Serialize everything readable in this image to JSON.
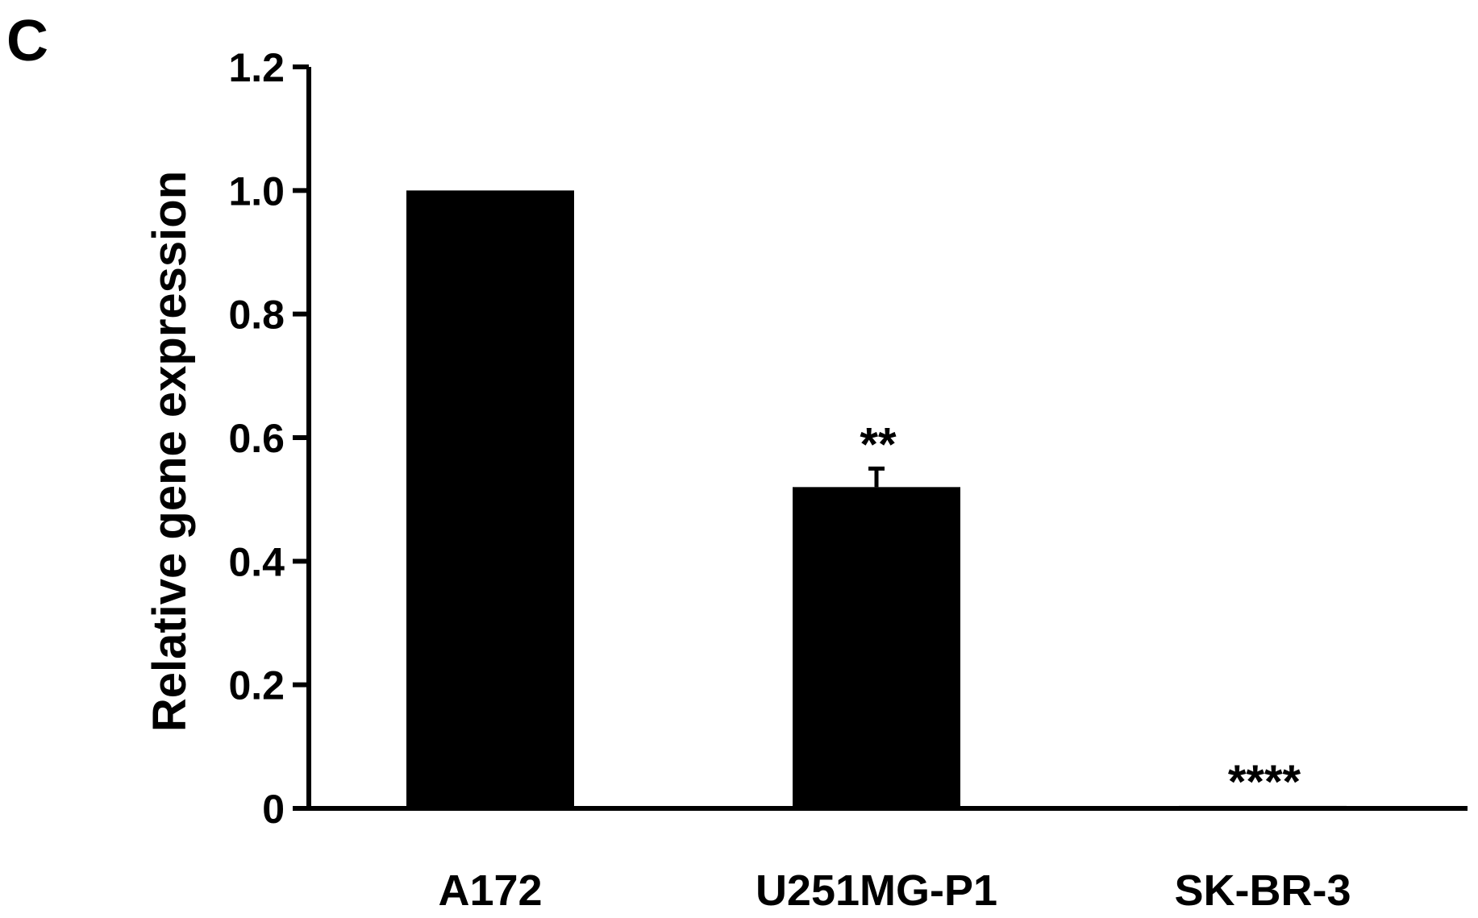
{
  "panel_label": "C",
  "chart_data": {
    "type": "bar",
    "categories": [
      "A172",
      "U251MG-P1",
      "SK-BR-3"
    ],
    "values": [
      1.0,
      0.52,
      0.004
    ],
    "errors": [
      0.0,
      0.03,
      0.0
    ],
    "annotations": [
      "",
      "**",
      "****"
    ],
    "title": "",
    "xlabel": "",
    "ylabel": "Relative gene expression",
    "ylim": [
      0,
      1.2
    ],
    "yticks": [
      0,
      0.2,
      0.4,
      0.6,
      0.8,
      1.0,
      1.2
    ],
    "ytick_labels": [
      "0",
      "0.2",
      "0.4",
      "0.6",
      "0.8",
      "1.0",
      "1.2"
    ],
    "bar_color": "#000000",
    "grid": false,
    "legend": "none"
  }
}
